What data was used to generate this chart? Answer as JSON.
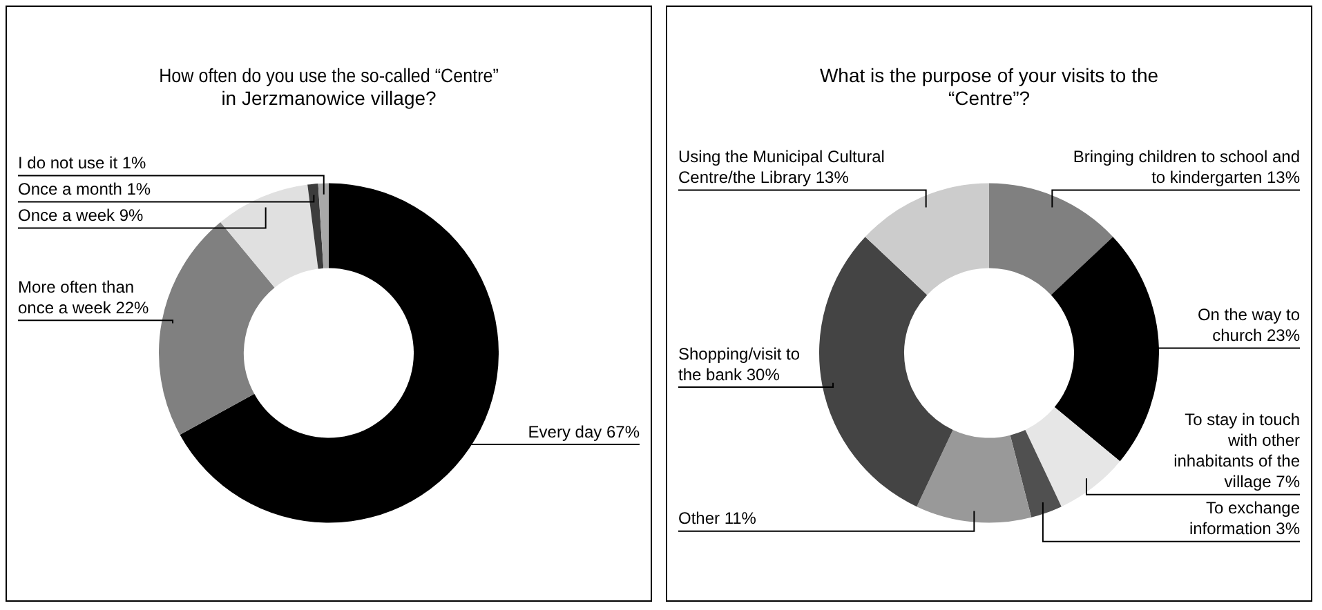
{
  "chart_data": [
    {
      "type": "donut",
      "title": "How often do you use the so-called “Centre” in Jerzmanowice village?",
      "categories": [
        "Every day",
        "More often than once a week",
        "Once a week",
        "Once a month",
        "I do not use it"
      ],
      "values": [
        67,
        22,
        9,
        1,
        1
      ],
      "value_labels": [
        "67%",
        "22%",
        "9%",
        "1%",
        "1%"
      ],
      "colors": [
        "#000000",
        "#808080",
        "#e0e0e0",
        "#3c3c3c",
        "#a8a8a8"
      ]
    },
    {
      "type": "donut",
      "title": "What is the purpose of your visits to the “Centre”?",
      "categories": [
        "Bringing children to school and to kindergarten",
        "On the way to church",
        "To stay in touch with other inhabitants of the village",
        "To exchange information",
        "Other",
        "Shopping/visit to the bank",
        "Using the Municipal Cultural Centre/the Library"
      ],
      "values": [
        13,
        23,
        7,
        3,
        11,
        30,
        13
      ],
      "value_labels": [
        "13%",
        "23%",
        "7%",
        "3%",
        "11%",
        "30%",
        "13%"
      ],
      "colors": [
        "#808080",
        "#000000",
        "#e6e6e6",
        "#505050",
        "#999999",
        "#444444",
        "#cccccc"
      ]
    }
  ]
}
